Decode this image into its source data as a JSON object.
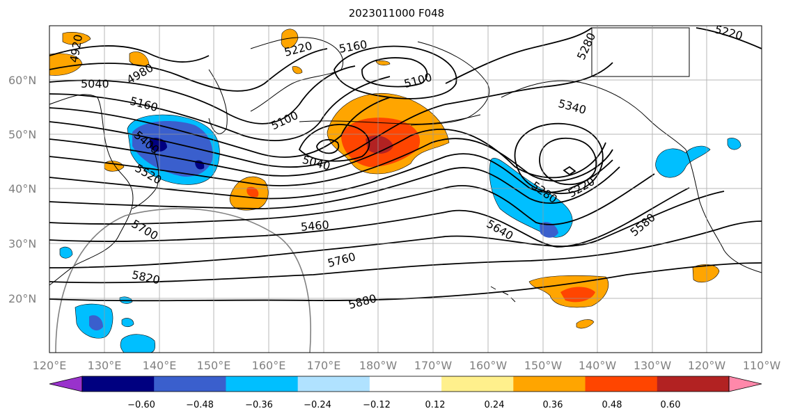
{
  "map": {
    "title": "2023011000 F048",
    "lon_labels": [
      "120°E",
      "130°E",
      "140°E",
      "150°E",
      "160°E",
      "170°E",
      "180°W",
      "170°W",
      "160°W",
      "150°W",
      "140°W",
      "130°W",
      "120°W",
      "110°W"
    ],
    "lat_labels": [
      "60°N",
      "50°N",
      "40°N",
      "30°N",
      "20°N"
    ],
    "contour_labels": [
      "4920",
      "4980",
      "5040",
      "5100",
      "5160",
      "5220",
      "5280",
      "5340",
      "5400",
      "5460",
      "5520",
      "5580",
      "5640",
      "5700",
      "5760",
      "5820",
      "5880"
    ]
  },
  "colorbar": {
    "ticks": [
      "−0.60",
      "−0.48",
      "−0.36",
      "−0.24",
      "−0.12",
      "0.12",
      "0.24",
      "0.36",
      "0.48",
      "0.60"
    ],
    "colors": [
      "#9932cc",
      "#000080",
      "#3a5fcd",
      "#00bfff",
      "#b0e2ff",
      "#ffffff",
      "#fff08c",
      "#ffa500",
      "#ff4500",
      "#b22222",
      "#ff88aa"
    ]
  }
}
